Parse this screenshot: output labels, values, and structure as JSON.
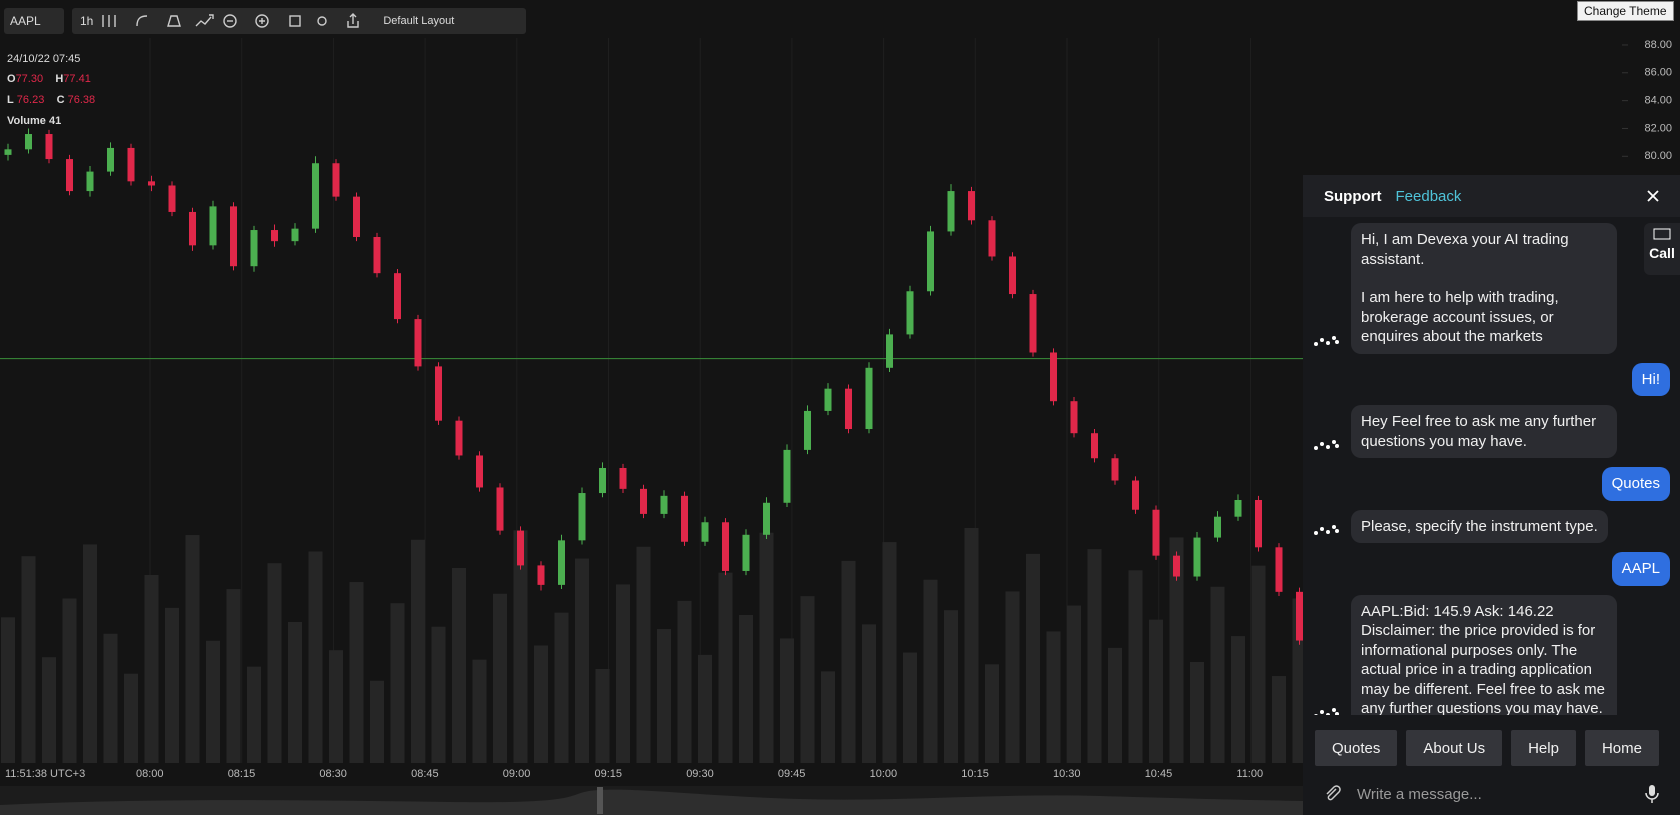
{
  "toolbar": {
    "symbol": "AAPL",
    "interval": "1h",
    "layout": "Default Layout",
    "theme_button": "Change Theme"
  },
  "legend": {
    "datetime": "24/10/22 07:45",
    "open_label": "O",
    "open": "77.30",
    "high_label": "H",
    "high": "77.41",
    "low_label": "L",
    "low": "76.23",
    "close_label": "C",
    "close": "76.38",
    "volume": "Volume 41"
  },
  "chart": {
    "type": "candlestick",
    "ylim": [
      36.4,
      88.5
    ],
    "yticks": [
      {
        "value": 88,
        "label": "88.00"
      },
      {
        "value": 86,
        "label": "86.00"
      },
      {
        "value": 84,
        "label": "84.00"
      },
      {
        "value": 82,
        "label": "82.00"
      },
      {
        "value": 80,
        "label": "80.00"
      }
    ],
    "clock": "11:51:38 UTC+3",
    "time_labels": [
      "08:00",
      "08:15",
      "08:30",
      "08:45",
      "09:00",
      "09:15",
      "09:30",
      "09:45",
      "10:00",
      "10:15",
      "10:30",
      "10:45",
      "11:00"
    ],
    "price_line": 65.46,
    "up_color": "#4caf50",
    "down_color": "#e0284a",
    "candles": [
      [
        80.1,
        80.9,
        79.7,
        80.5
      ],
      [
        80.5,
        82.0,
        80.2,
        81.6
      ],
      [
        81.6,
        81.9,
        79.5,
        79.8
      ],
      [
        79.8,
        80.1,
        77.2,
        77.5
      ],
      [
        77.5,
        79.3,
        77.1,
        78.9
      ],
      [
        78.9,
        81.0,
        78.6,
        80.6
      ],
      [
        80.6,
        80.9,
        77.9,
        78.2
      ],
      [
        78.2,
        78.6,
        77.5,
        77.9
      ],
      [
        77.9,
        78.2,
        75.7,
        76.0
      ],
      [
        76.0,
        76.3,
        73.2,
        73.6
      ],
      [
        73.6,
        76.8,
        73.3,
        76.4
      ],
      [
        76.4,
        76.7,
        71.8,
        72.1
      ],
      [
        72.1,
        75.0,
        71.7,
        74.7
      ],
      [
        74.7,
        75.1,
        73.5,
        73.9
      ],
      [
        73.9,
        75.2,
        73.6,
        74.8
      ],
      [
        74.8,
        80.0,
        74.5,
        79.5
      ],
      [
        79.5,
        79.8,
        76.8,
        77.1
      ],
      [
        77.1,
        77.4,
        73.9,
        74.2
      ],
      [
        74.2,
        74.5,
        71.3,
        71.6
      ],
      [
        71.6,
        71.9,
        68.0,
        68.3
      ],
      [
        68.3,
        68.6,
        64.6,
        64.9
      ],
      [
        64.9,
        65.2,
        60.7,
        61.0
      ],
      [
        61.0,
        61.3,
        58.2,
        58.5
      ],
      [
        58.5,
        58.8,
        55.9,
        56.2
      ],
      [
        56.2,
        56.5,
        52.8,
        53.1
      ],
      [
        53.1,
        53.4,
        50.3,
        50.6
      ],
      [
        50.6,
        50.9,
        48.8,
        49.2
      ],
      [
        49.2,
        52.8,
        48.9,
        52.4
      ],
      [
        52.4,
        56.2,
        52.1,
        55.8
      ],
      [
        55.8,
        58.0,
        55.5,
        57.6
      ],
      [
        57.6,
        57.9,
        55.8,
        56.1
      ],
      [
        56.1,
        56.4,
        54.0,
        54.3
      ],
      [
        54.3,
        56.0,
        54.0,
        55.6
      ],
      [
        55.6,
        55.9,
        52.0,
        52.3
      ],
      [
        52.3,
        54.1,
        52.0,
        53.7
      ],
      [
        53.7,
        54.0,
        49.9,
        50.2
      ],
      [
        50.2,
        53.2,
        49.9,
        52.8
      ],
      [
        52.8,
        55.5,
        52.5,
        55.1
      ],
      [
        55.1,
        59.3,
        54.8,
        58.9
      ],
      [
        58.9,
        62.1,
        58.6,
        61.7
      ],
      [
        61.7,
        63.7,
        61.4,
        63.3
      ],
      [
        63.3,
        63.6,
        60.1,
        60.4
      ],
      [
        60.4,
        65.2,
        60.1,
        64.8
      ],
      [
        64.8,
        67.6,
        64.5,
        67.2
      ],
      [
        67.2,
        70.7,
        66.9,
        70.3
      ],
      [
        70.3,
        75.0,
        70.0,
        74.6
      ],
      [
        74.6,
        78.0,
        74.3,
        77.5
      ],
      [
        77.5,
        77.8,
        75.1,
        75.4
      ],
      [
        75.4,
        75.7,
        72.5,
        72.8
      ],
      [
        72.8,
        73.1,
        69.8,
        70.1
      ],
      [
        70.1,
        70.4,
        65.6,
        65.9
      ],
      [
        65.9,
        66.2,
        62.1,
        62.4
      ],
      [
        62.4,
        62.7,
        59.8,
        60.1
      ],
      [
        60.1,
        60.4,
        58.0,
        58.3
      ],
      [
        58.3,
        58.6,
        56.4,
        56.7
      ],
      [
        56.7,
        57.0,
        54.3,
        54.6
      ],
      [
        54.6,
        54.9,
        51.0,
        51.3
      ],
      [
        51.3,
        51.6,
        49.5,
        49.8
      ],
      [
        49.8,
        53.0,
        49.5,
        52.6
      ],
      [
        52.6,
        54.5,
        52.3,
        54.1
      ],
      [
        54.1,
        55.7,
        53.8,
        55.3
      ],
      [
        55.3,
        55.6,
        51.6,
        51.9
      ],
      [
        51.9,
        52.2,
        48.4,
        48.7
      ],
      [
        48.7,
        49.0,
        44.9,
        45.2
      ]
    ],
    "volumes": [
      62,
      88,
      45,
      70,
      93,
      55,
      38,
      80,
      66,
      97,
      52,
      74,
      41,
      85,
      60,
      90,
      48,
      77,
      35,
      68,
      95,
      58,
      83,
      44,
      72,
      99,
      50,
      64,
      87,
      40,
      76,
      92,
      57,
      69,
      46,
      81,
      63,
      98,
      53,
      71,
      39,
      86,
      59,
      94,
      47,
      78,
      65,
      100,
      42,
      73,
      89,
      56,
      67,
      91,
      49,
      82,
      61,
      96,
      43,
      75,
      54,
      84,
      37,
      70
    ]
  },
  "chat": {
    "tab_support": "Support",
    "tab_feedback": "Feedback",
    "call": "Call",
    "messages": [
      {
        "from": "bot",
        "paragraphs": [
          "Hi, I am Devexa your AI trading assistant.",
          "I am here to help with trading, brokerage account issues, or enquires about the markets"
        ]
      },
      {
        "from": "user",
        "paragraphs": [
          "Hi!"
        ]
      },
      {
        "from": "bot",
        "paragraphs": [
          "Hey Feel free to ask me any further questions you may have."
        ]
      },
      {
        "from": "user",
        "paragraphs": [
          "Quotes"
        ]
      },
      {
        "from": "bot",
        "paragraphs": [
          "Please, specify the instrument type."
        ]
      },
      {
        "from": "user",
        "paragraphs": [
          "AAPL"
        ]
      },
      {
        "from": "bot",
        "paragraphs": [
          "AAPL:Bid: 145.9 Ask: 146.22",
          "Disclaimer: the price provided is for informational purposes only. The actual price in a trading application may be different. Feel free to ask me any further questions you may have."
        ]
      }
    ],
    "quick_replies": [
      "Quotes",
      "About Us",
      "Help",
      "Home"
    ],
    "placeholder": "Write a message..."
  }
}
